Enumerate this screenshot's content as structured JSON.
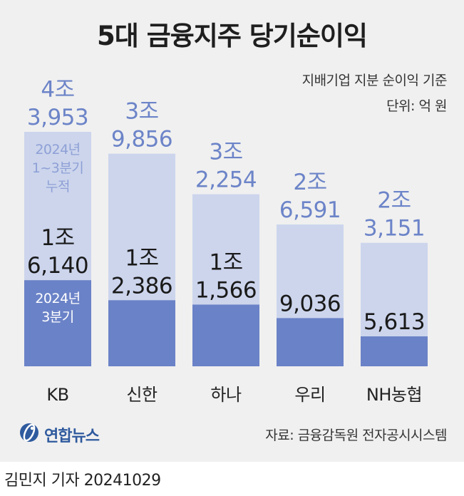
{
  "title": "5대 금융지주 당기순이익",
  "basis_note": "지배기업 지분 순이익 기준",
  "unit_note": "단위: 억 원",
  "source": "자료: 금융감독원 전자공시시스템",
  "logo_text": "연합뉴스",
  "credit": "김민지 기자  20241029",
  "colors": {
    "background": "#f0f0f0",
    "cumulative_bar": "#ccd5ec",
    "quarter_bar": "#6a82c7",
    "cumulative_label": "#6c84c8",
    "quarter_label": "#1a1a1a",
    "title": "#1e1e1e"
  },
  "chart_data": {
    "type": "bar",
    "categories": [
      "KB",
      "신한",
      "하나",
      "우리",
      "NH농협"
    ],
    "series": [
      {
        "name": "2024년 1~3분기 누적",
        "values": [
          43953,
          39856,
          32254,
          26591,
          23151
        ],
        "labels": [
          [
            "4조",
            "3,953"
          ],
          [
            "3조",
            "9,856"
          ],
          [
            "3조",
            "2,254"
          ],
          [
            "2조",
            "6,591"
          ],
          [
            "2조",
            "3,151"
          ]
        ]
      },
      {
        "name": "2024년 3분기",
        "values": [
          16140,
          12386,
          11566,
          9036,
          5613
        ],
        "labels": [
          [
            "1조",
            "6,140"
          ],
          [
            "1조",
            "2,386"
          ],
          [
            "1조",
            "1,566"
          ],
          [
            "9,036"
          ],
          [
            "5,613"
          ]
        ]
      }
    ],
    "legend_cumulative": [
      "2024년",
      "1~3분기",
      "누적"
    ],
    "legend_quarter": [
      "2024년",
      "3분기"
    ],
    "xlabel": "",
    "ylabel": ""
  }
}
